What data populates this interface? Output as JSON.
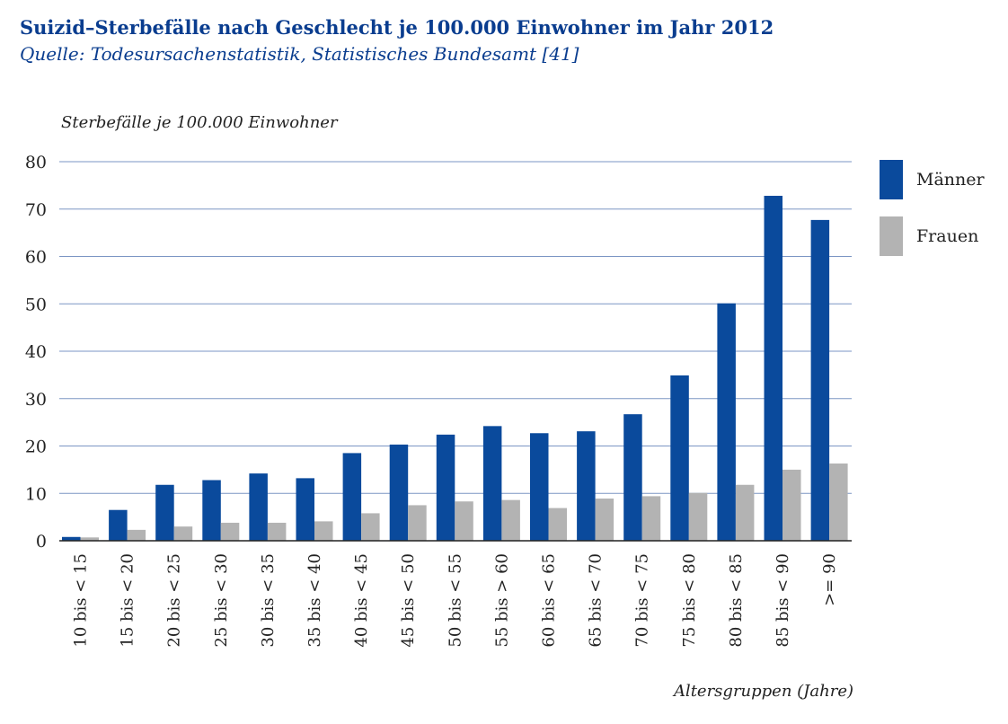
{
  "header": {
    "title": "Suizid–Sterbefälle nach Geschlecht je 100.000 Einwohner im Jahr 2012",
    "subtitle": "Quelle: Todesursachenstatistik, Statistisches Bundesamt [41]"
  },
  "chart_data": {
    "type": "bar",
    "ylabel": "Sterbefälle je 100.000 Einwohner",
    "xlabel": "Altersgruppen (Jahre)",
    "ylim": [
      0,
      80
    ],
    "yticks": [
      0,
      10,
      20,
      30,
      40,
      50,
      60,
      70,
      80
    ],
    "grid": true,
    "legend_position": "right",
    "categories": [
      "10 bis < 15",
      "15 bis < 20",
      "20 bis < 25",
      "25 bis < 30",
      "30 bis < 35",
      "35 bis < 40",
      "40 bis < 45",
      "45 bis < 50",
      "50 bis < 55",
      "55 bis > 60",
      "60 bis < 65",
      "65 bis < 70",
      "70 bis < 75",
      "75 bis < 80",
      "80 bis < 85",
      "85 bis < 90",
      ">= 90"
    ],
    "series": [
      {
        "name": "Männer",
        "color": "#0a4a9c",
        "values": [
          0.8,
          6.5,
          11.8,
          12.8,
          14.2,
          13.2,
          18.5,
          20.3,
          22.4,
          24.2,
          22.7,
          23.1,
          26.7,
          34.9,
          50.1,
          72.8,
          67.7
        ]
      },
      {
        "name": "Frauen",
        "color": "#b3b3b3",
        "values": [
          0.7,
          2.3,
          3.0,
          3.8,
          3.8,
          4.1,
          5.8,
          7.5,
          8.3,
          8.6,
          6.9,
          8.9,
          9.4,
          10.1,
          11.8,
          15.0,
          16.3
        ]
      }
    ]
  }
}
